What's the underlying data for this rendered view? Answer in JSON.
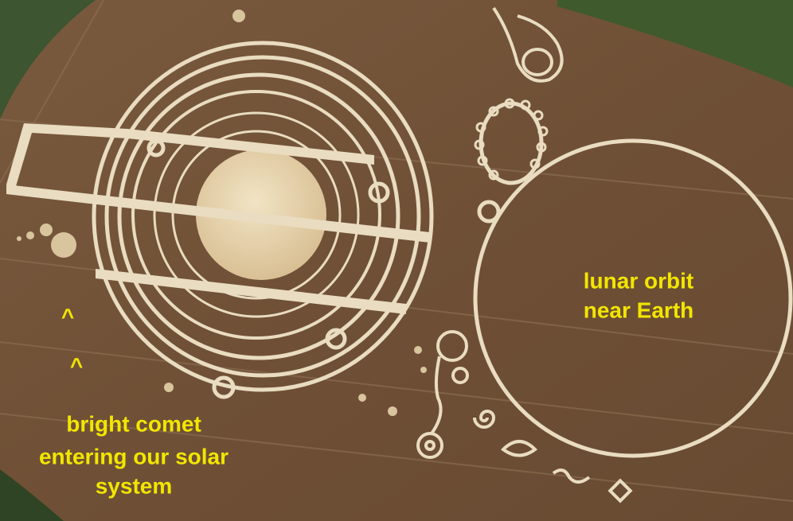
{
  "annotations": {
    "lunar": [
      "lunar orbit",
      "near Earth"
    ],
    "comet": [
      "bright comet",
      "entering our solar",
      "system"
    ],
    "carets": [
      "^",
      "^"
    ]
  }
}
